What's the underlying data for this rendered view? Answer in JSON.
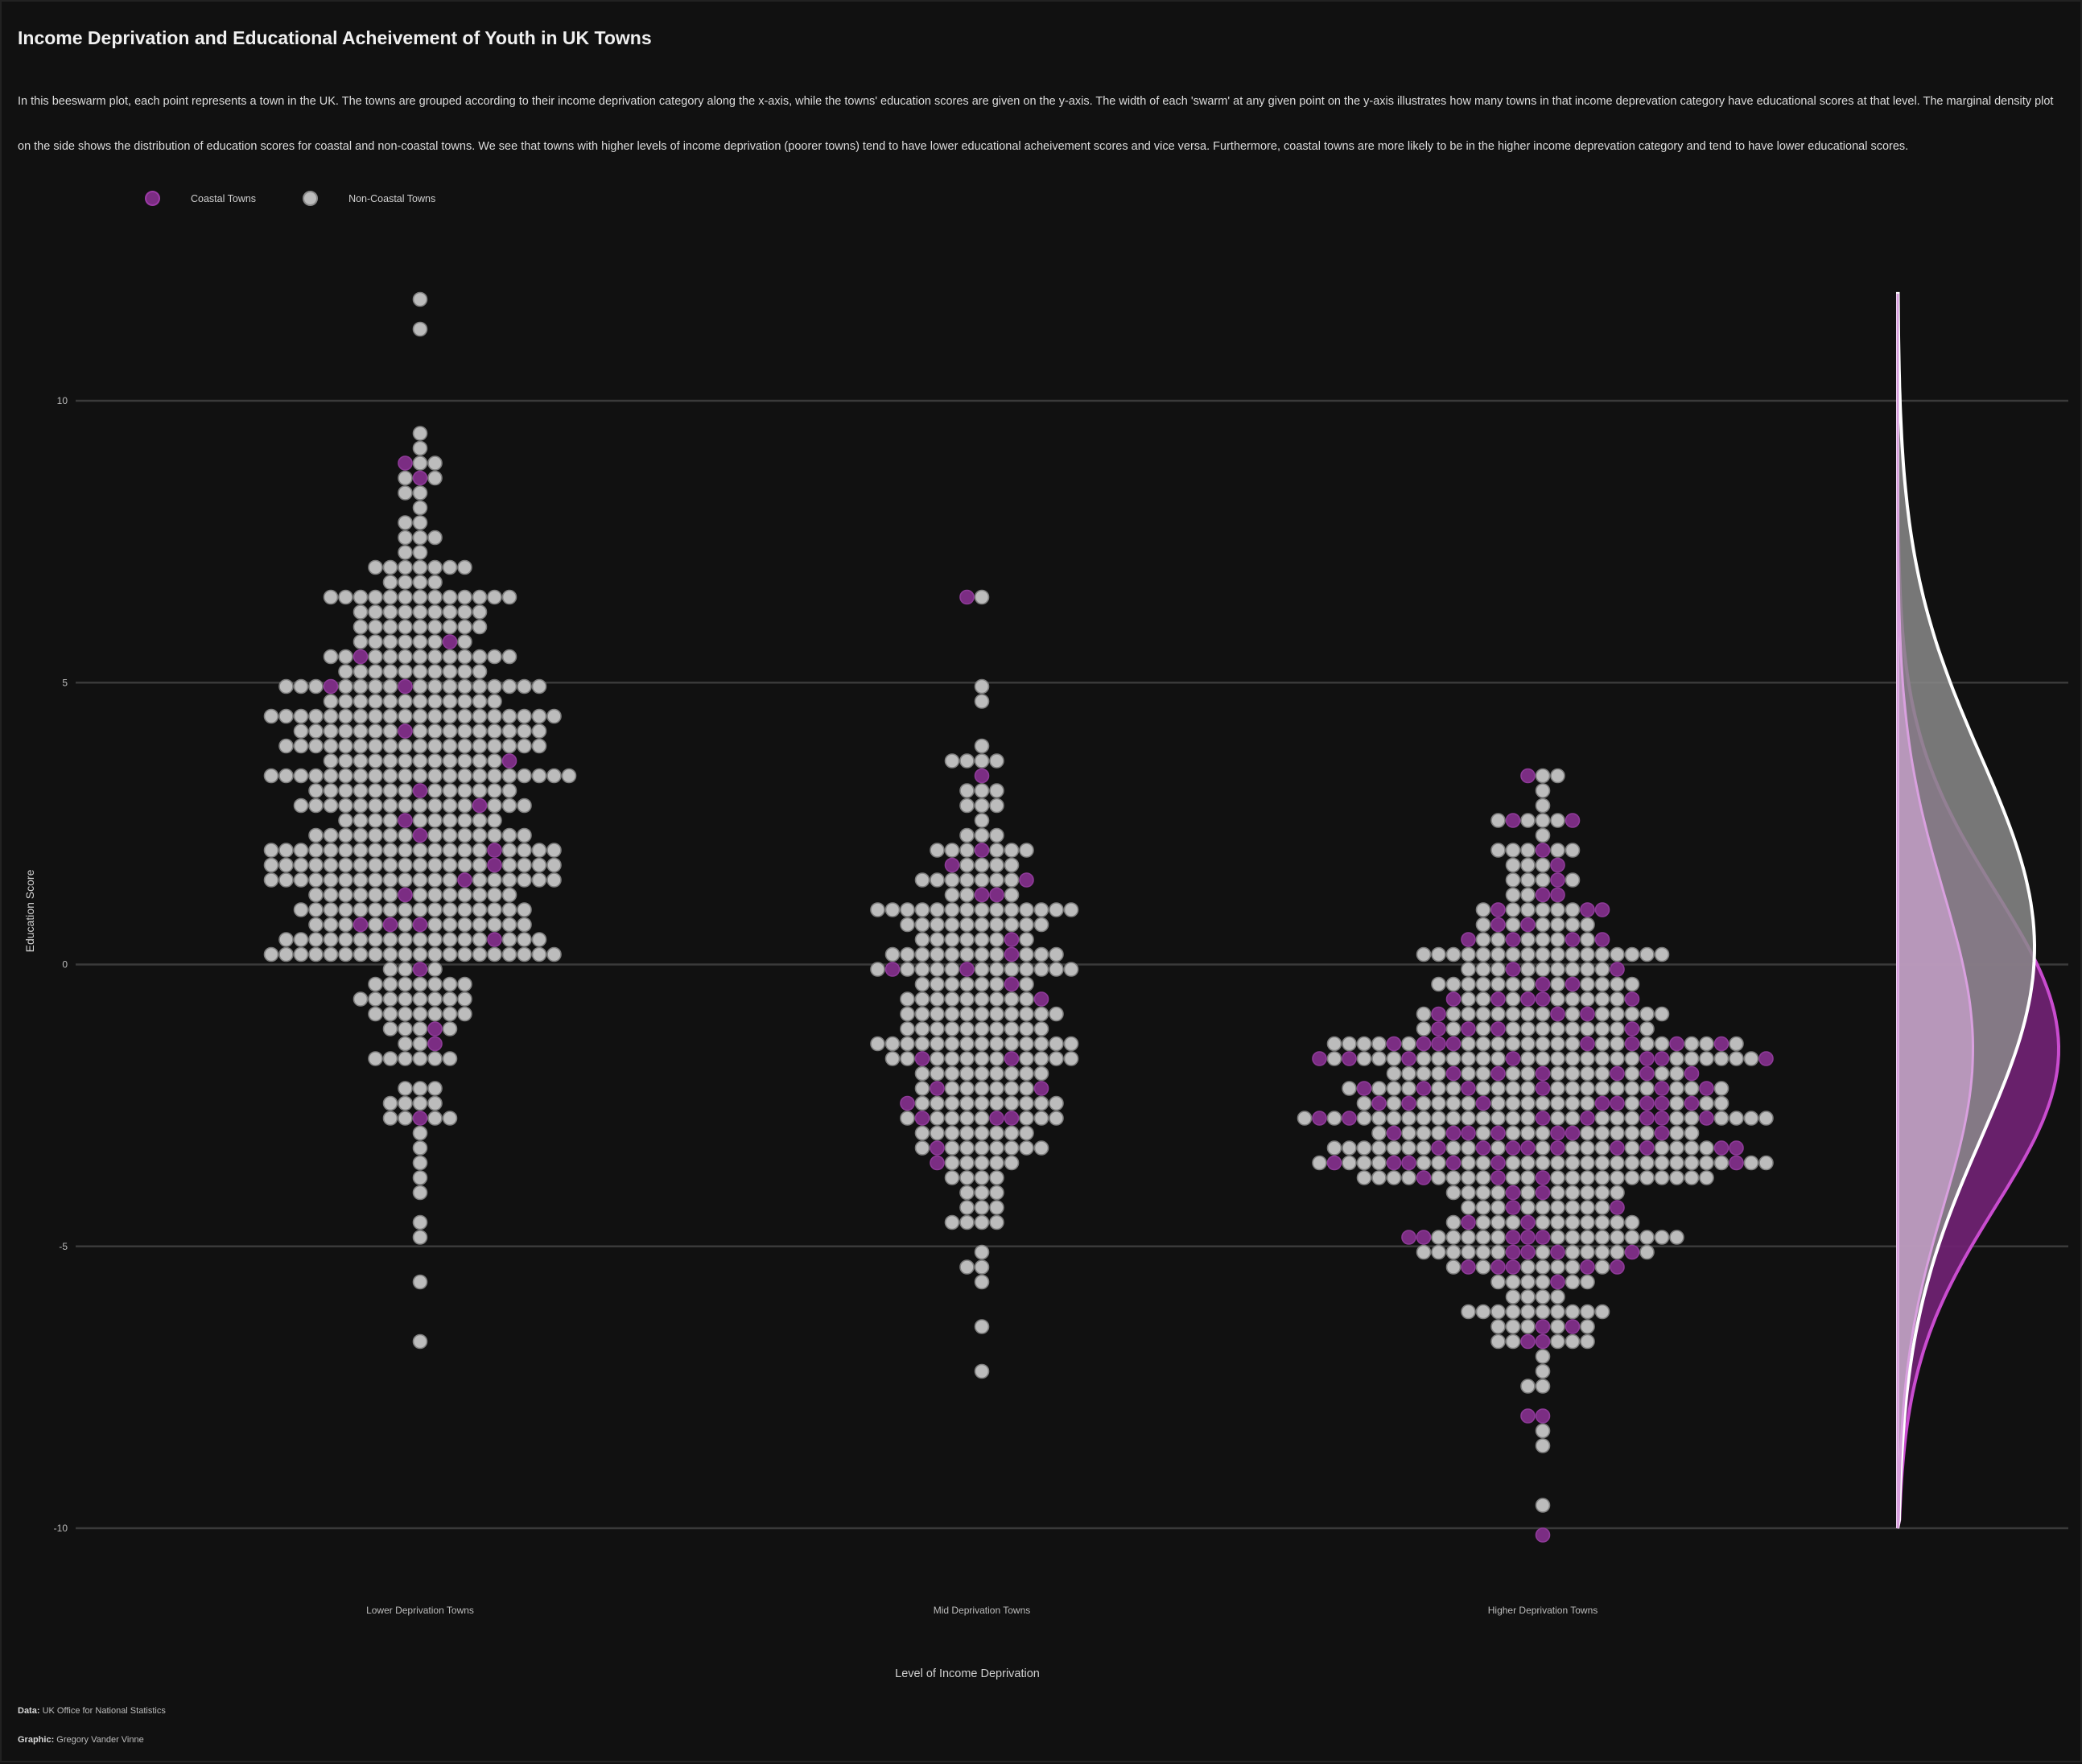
{
  "title": "Income Deprivation  and Educational  Acheivement  of Youth in UK Towns",
  "subtitle": "In this beeswarm plot, each point represents a town in the UK. The towns are grouped according to their income deprivation category along the x-axis, while the towns' education scores are given on the y-axis. The width of each 'swarm' at any given point on the y-axis illustrates how many towns in that income deprevation category have educational scores at that level. The marginal density plot on the side shows the distribution of education scores for coastal and non-coastal towns. We see that towns with higher levels of income deprivation (poorer towns) tend to have lower educational acheivement scores and vice versa. Furthermore, coastal towns are more likely to be in the higher income deprevation category and tend to have lower educational scores.",
  "legend": {
    "coastal": "Coastal Towns",
    "noncoastal": "Non-Coastal Towns"
  },
  "caption": {
    "data_label": "Data:",
    "data_value": "UK Office for National Statistics",
    "graphic_label": "Graphic:",
    "graphic_value": "Gregory Vander Vinne"
  },
  "colors": {
    "background": "#111111",
    "coastal": "#7b2d83",
    "noncoastal": "#bcbcbc",
    "gridline": "#3a3a3a"
  },
  "chart_data": {
    "type": "beeswarm",
    "xlabel": "Level of Income Deprivation",
    "ylabel": "Education Score",
    "categories": [
      "Lower Deprivation Towns",
      "Mid Deprivation Towns",
      "Higher Deprivation Towns"
    ],
    "ylim": [
      -10,
      12
    ],
    "yticks": [
      -10,
      -5,
      0,
      5,
      10
    ],
    "grid": true,
    "legend_position": "top-left",
    "series": [
      {
        "category": "Lower Deprivation Towns",
        "count_approx": 470,
        "mean": 2.8,
        "sd": 2.6,
        "min": -6.8,
        "max": 11.9,
        "coastal_share": 0.04
      },
      {
        "category": "Mid Deprivation Towns",
        "count_approx": 250,
        "mean": -0.8,
        "sd": 2.2,
        "min": -7.3,
        "max": 6.6,
        "coastal_share": 0.1
      },
      {
        "category": "Higher Deprivation Towns",
        "count_approx": 540,
        "mean": -2.4,
        "sd": 2.2,
        "min": -10.0,
        "max": 3.4,
        "coastal_share": 0.22
      }
    ],
    "marginal_density": [
      {
        "name": "Coastal Towns",
        "peak_y": -1.5,
        "spread": 2.8
      },
      {
        "name": "Non-Coastal Towns",
        "peak_y": 0.3,
        "spread": 3.4
      }
    ]
  }
}
